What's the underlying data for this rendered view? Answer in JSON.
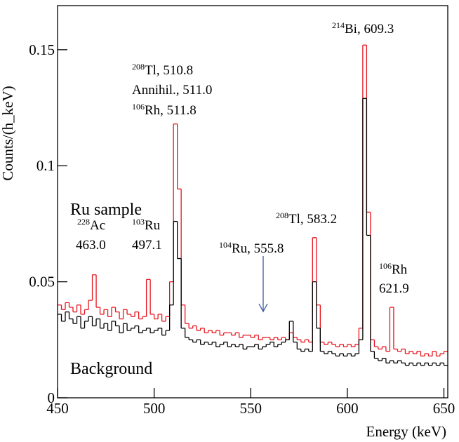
{
  "chart_data": {
    "type": "histogram",
    "x_label": "Energy (keV)",
    "y_label": "Counts/(h_keV)",
    "bins": [
      450,
      452,
      454,
      456,
      458,
      460,
      462,
      464,
      466,
      468,
      470,
      472,
      474,
      476,
      478,
      480,
      482,
      484,
      486,
      488,
      490,
      492,
      494,
      496,
      498,
      500,
      502,
      504,
      506,
      508,
      510,
      512,
      514,
      516,
      518,
      520,
      522,
      524,
      526,
      528,
      530,
      532,
      534,
      536,
      538,
      540,
      542,
      544,
      546,
      548,
      550,
      552,
      554,
      556,
      558,
      560,
      562,
      564,
      566,
      568,
      570,
      572,
      574,
      576,
      578,
      580,
      582,
      584,
      586,
      588,
      590,
      592,
      594,
      596,
      598,
      600,
      602,
      604,
      606,
      608,
      610,
      612,
      614,
      616,
      618,
      620,
      622,
      624,
      626,
      628,
      630,
      632,
      634,
      636,
      638,
      640,
      642,
      644,
      646,
      648,
      650,
      652
    ],
    "series": [
      {
        "name": "Ru sample",
        "color": "#e8141c",
        "values": [
          0.04,
          0.038,
          0.041,
          0.039,
          0.037,
          0.04,
          0.036,
          0.038,
          0.042,
          0.053,
          0.039,
          0.036,
          0.038,
          0.035,
          0.039,
          0.037,
          0.034,
          0.038,
          0.036,
          0.035,
          0.037,
          0.034,
          0.035,
          0.051,
          0.036,
          0.034,
          0.036,
          0.033,
          0.035,
          0.05,
          0.118,
          0.09,
          0.04,
          0.032,
          0.03,
          0.031,
          0.029,
          0.03,
          0.028,
          0.029,
          0.028,
          0.029,
          0.027,
          0.028,
          0.028,
          0.027,
          0.028,
          0.026,
          0.027,
          0.027,
          0.026,
          0.027,
          0.025,
          0.026,
          0.026,
          0.025,
          0.026,
          0.025,
          0.026,
          0.025,
          0.028,
          0.026,
          0.025,
          0.024,
          0.025,
          0.024,
          0.069,
          0.04,
          0.024,
          0.023,
          0.024,
          0.023,
          0.022,
          0.023,
          0.022,
          0.023,
          0.022,
          0.023,
          0.03,
          0.152,
          0.08,
          0.025,
          0.022,
          0.021,
          0.022,
          0.02,
          0.039,
          0.021,
          0.02,
          0.021,
          0.019,
          0.02,
          0.019,
          0.02,
          0.018,
          0.019,
          0.018,
          0.02,
          0.018,
          0.019,
          0.02
        ]
      },
      {
        "name": "Background",
        "color": "#000000",
        "values": [
          0.036,
          0.033,
          0.037,
          0.034,
          0.032,
          0.035,
          0.03,
          0.033,
          0.035,
          0.031,
          0.034,
          0.03,
          0.032,
          0.029,
          0.033,
          0.031,
          0.028,
          0.032,
          0.029,
          0.03,
          0.031,
          0.028,
          0.029,
          0.03,
          0.028,
          0.029,
          0.03,
          0.027,
          0.029,
          0.04,
          0.076,
          0.06,
          0.03,
          0.026,
          0.025,
          0.024,
          0.025,
          0.023,
          0.024,
          0.023,
          0.024,
          0.022,
          0.023,
          0.024,
          0.022,
          0.023,
          0.022,
          0.023,
          0.021,
          0.022,
          0.022,
          0.023,
          0.021,
          0.022,
          0.023,
          0.024,
          0.022,
          0.023,
          0.024,
          0.025,
          0.033,
          0.024,
          0.021,
          0.02,
          0.021,
          0.02,
          0.05,
          0.03,
          0.02,
          0.019,
          0.02,
          0.019,
          0.018,
          0.019,
          0.018,
          0.019,
          0.018,
          0.019,
          0.025,
          0.129,
          0.07,
          0.02,
          0.017,
          0.016,
          0.017,
          0.015,
          0.016,
          0.015,
          0.016,
          0.015,
          0.014,
          0.015,
          0.014,
          0.015,
          0.014,
          0.015,
          0.014,
          0.015,
          0.014,
          0.015,
          0.014
        ]
      }
    ],
    "xlim": [
      450,
      652
    ],
    "ylim": [
      0,
      0.169
    ],
    "xticks": [
      450,
      500,
      550,
      600,
      650
    ],
    "yticks": [
      0,
      0.05,
      0.1,
      0.15
    ],
    "annotations": [
      {
        "sup": "208",
        "text": "Tl, 510.8"
      },
      {
        "text": "Annihil., 511.0"
      },
      {
        "sup": "106",
        "text": "Rh, 511.8"
      },
      {
        "sup": "214",
        "text": "Bi, 609.3"
      },
      {
        "sup": "228",
        "text": "Ac"
      },
      {
        "text": "463.0"
      },
      {
        "sup": "103",
        "text": "Ru"
      },
      {
        "text": "497.1"
      },
      {
        "sup": "104",
        "text": "Ru, 555.8",
        "color": "#3a5ba0"
      },
      {
        "sup": "208",
        "text": "Tl, 583.2"
      },
      {
        "sup": "106",
        "text": "Rh"
      },
      {
        "text": "621.9"
      }
    ]
  }
}
